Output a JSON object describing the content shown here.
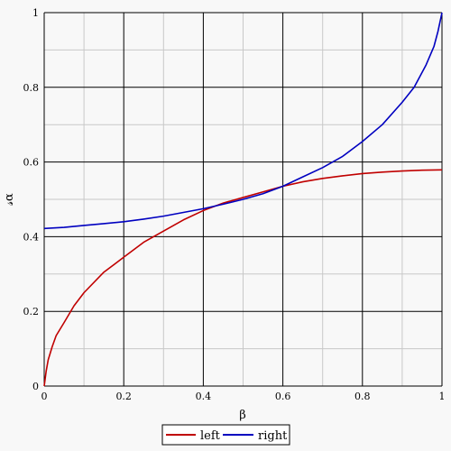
{
  "chart_data": {
    "type": "line",
    "xlabel": "β",
    "ylabel": "𝓈α",
    "xlim": [
      0,
      1
    ],
    "ylim": [
      0,
      1
    ],
    "x_ticks": [
      "0",
      "0.2",
      "0.4",
      "0.6",
      "0.8",
      "1"
    ],
    "y_ticks": [
      "0",
      "0.2",
      "0.4",
      "0.6",
      "0.8",
      "1"
    ],
    "grid": true,
    "legend_position": "bottom",
    "series": [
      {
        "name": "left",
        "color": "#c00000",
        "x": [
          0,
          0.005,
          0.01,
          0.02,
          0.03,
          0.05,
          0.075,
          0.1,
          0.15,
          0.2,
          0.25,
          0.3,
          0.35,
          0.4,
          0.45,
          0.5,
          0.55,
          0.6,
          0.65,
          0.7,
          0.75,
          0.8,
          0.85,
          0.9,
          0.95,
          1.0
        ],
        "y": [
          0.0,
          0.04,
          0.07,
          0.105,
          0.135,
          0.17,
          0.215,
          0.25,
          0.305,
          0.345,
          0.385,
          0.415,
          0.445,
          0.47,
          0.49,
          0.505,
          0.52,
          0.535,
          0.547,
          0.556,
          0.563,
          0.569,
          0.573,
          0.576,
          0.578,
          0.579
        ]
      },
      {
        "name": "right",
        "color": "#0000c0",
        "x": [
          0,
          0.05,
          0.1,
          0.15,
          0.2,
          0.25,
          0.3,
          0.35,
          0.4,
          0.45,
          0.5,
          0.55,
          0.6,
          0.65,
          0.7,
          0.75,
          0.8,
          0.85,
          0.9,
          0.93,
          0.96,
          0.98,
          0.99,
          1.0
        ],
        "y": [
          0.422,
          0.425,
          0.43,
          0.435,
          0.44,
          0.447,
          0.455,
          0.465,
          0.475,
          0.487,
          0.5,
          0.515,
          0.535,
          0.56,
          0.585,
          0.615,
          0.655,
          0.7,
          0.76,
          0.8,
          0.86,
          0.91,
          0.95,
          1.0
        ]
      }
    ]
  }
}
